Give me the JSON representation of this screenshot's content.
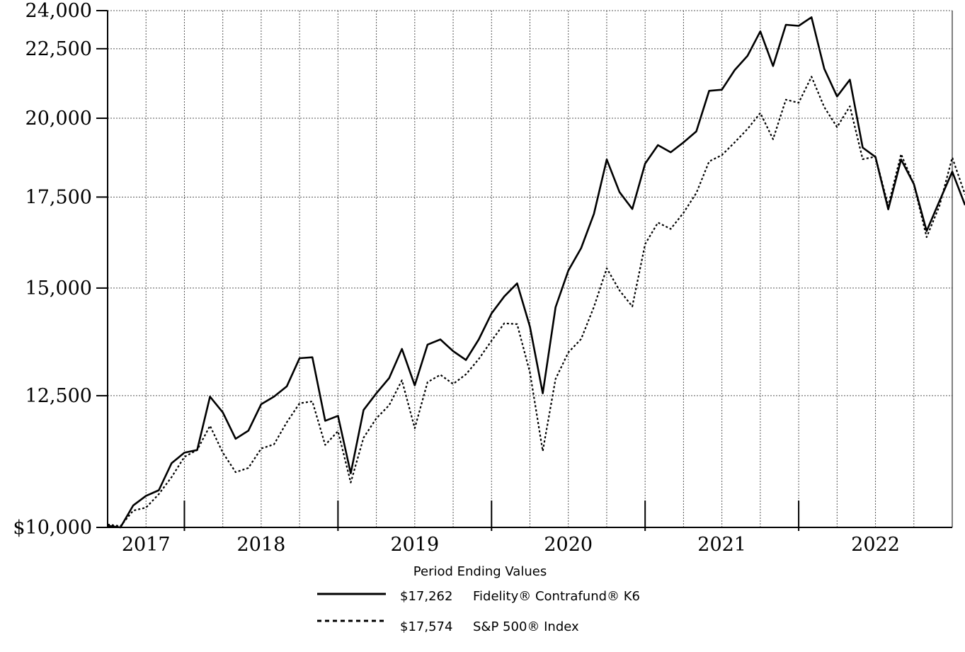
{
  "chart_data": {
    "type": "line",
    "y_scale": "log",
    "ylim": [
      10000,
      24000
    ],
    "grid": true,
    "y_ticks": [
      {
        "value": 10000,
        "label": "$10,000"
      },
      {
        "value": 12500,
        "label": "12,500"
      },
      {
        "value": 15000,
        "label": "15,000"
      },
      {
        "value": 17500,
        "label": "17,500"
      },
      {
        "value": 20000,
        "label": "20,000"
      },
      {
        "value": 22500,
        "label": "22,500"
      },
      {
        "value": 24000,
        "label": "24,000"
      }
    ],
    "x_labels": [
      "2017",
      "2018",
      "2019",
      "2020",
      "2021",
      "2022"
    ],
    "x_range": [
      "2017-06",
      "2022-12"
    ],
    "year_boundaries": [
      "2017-12",
      "2018-12",
      "2019-12",
      "2020-12",
      "2021-12"
    ],
    "series": [
      {
        "name": "Fidelity® Contrafund® K6",
        "style": "solid",
        "values": [
          10030,
          10000,
          10380,
          10550,
          10650,
          11150,
          11350,
          11400,
          12480,
          12150,
          11620,
          11780,
          12320,
          12480,
          12700,
          13320,
          13340,
          11980,
          12080,
          10960,
          12200,
          12550,
          12880,
          13530,
          12720,
          13630,
          13750,
          13480,
          13280,
          13750,
          14370,
          14790,
          15120,
          14050,
          12550,
          14520,
          15450,
          16050,
          17010,
          18650,
          17650,
          17150,
          18520,
          19110,
          18880,
          19200,
          19560,
          20950,
          20990,
          21700,
          22230,
          23170,
          21850,
          23430,
          23390,
          23730,
          21750,
          20750,
          21350,
          19030,
          18730,
          17140,
          18650,
          17890,
          16520,
          17380,
          18270,
          17262
        ]
      },
      {
        "name": "S&P 500® Index",
        "style": "dotted",
        "values": [
          10050,
          10020,
          10290,
          10340,
          10580,
          10890,
          11270,
          11400,
          11880,
          11350,
          10980,
          11060,
          11430,
          11510,
          11950,
          12340,
          12380,
          11500,
          11770,
          10790,
          11640,
          12030,
          12300,
          12830,
          11830,
          12790,
          12950,
          12750,
          12960,
          13300,
          13720,
          14130,
          14110,
          13000,
          11380,
          12860,
          13450,
          13760,
          14530,
          15510,
          14940,
          14540,
          16160,
          16760,
          16580,
          17040,
          17620,
          18590,
          18790,
          19200,
          19640,
          20180,
          19300,
          20640,
          20530,
          21460,
          20380,
          19700,
          20410,
          18660,
          18740,
          17240,
          18820,
          17880,
          16350,
          17240,
          18710,
          17574
        ]
      }
    ]
  },
  "legend": {
    "title": "Period Ending Values",
    "items": [
      {
        "value": "$17,262",
        "name": "Fidelity® Contrafund® K6"
      },
      {
        "value": "$17,574",
        "name": "S&P 500® Index"
      }
    ]
  }
}
